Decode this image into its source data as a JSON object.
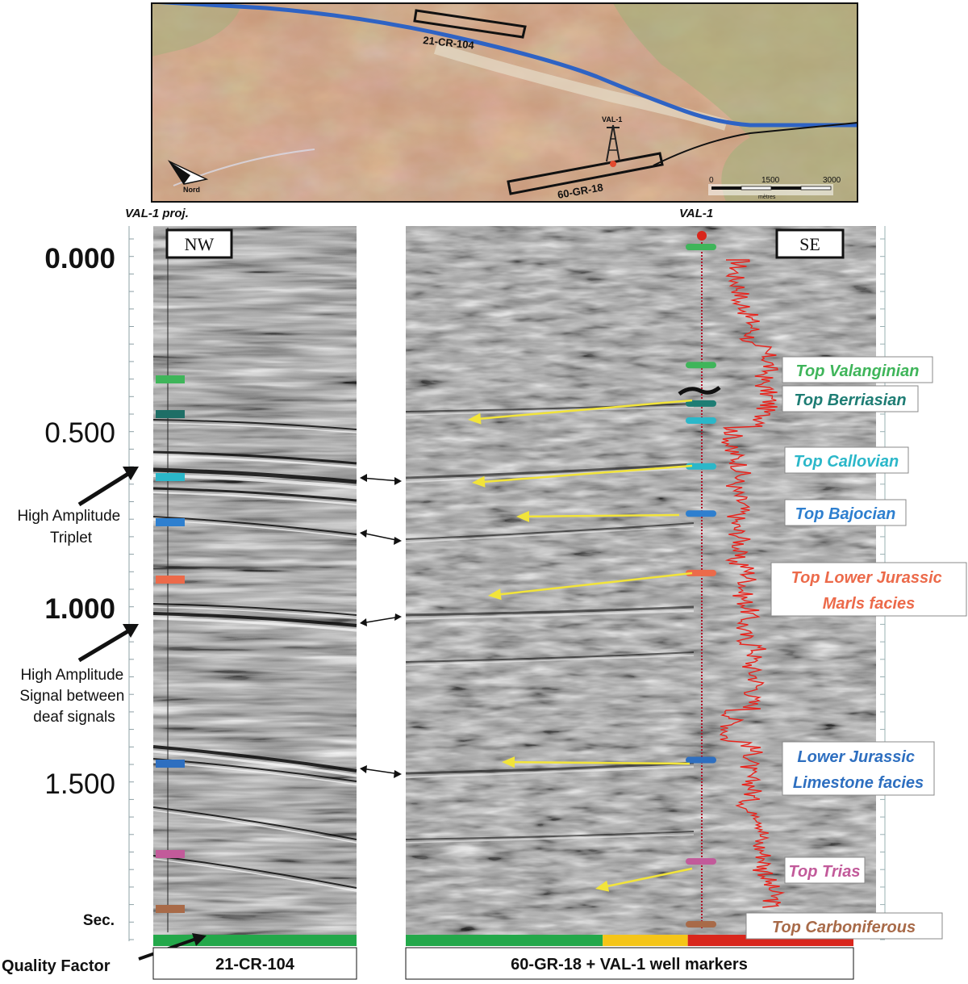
{
  "map": {
    "line_a_label": "21-CR-104",
    "line_b_label": "60-GR-18",
    "well_label": "VAL-1",
    "north_label": "Nord",
    "scale_ticks": [
      "0",
      "1500",
      "3000"
    ],
    "scale_unit": "mètres",
    "colors": {
      "river": "#2e63c4",
      "base": "#c89878",
      "green": "#9fb07a"
    }
  },
  "left_panel": {
    "header": "VAL-1 proj.",
    "direction": "NW",
    "caption": "21-CR-104",
    "marker_colors": [
      "#3fb55a",
      "#1e6e66",
      "#2bb7c9",
      "#2e7fcf",
      "#ec6a4a",
      "#2e6fc0",
      "#c25a9a",
      "#a86a48"
    ]
  },
  "right_panel": {
    "header": "VAL-1",
    "direction": "SE",
    "caption": "60-GR-18 + VAL-1 well markers",
    "gamma_color": "#e8231c"
  },
  "time_axis": {
    "ticks": [
      "0.000",
      "0.500",
      "1.000",
      "1.500"
    ],
    "unit": "Sec."
  },
  "annotations": {
    "triplet": "High Amplitude Triplet",
    "signal": "High Amplitude Signal between deaf signals",
    "quality": "Quality Factor"
  },
  "quality_factor": {
    "left": [
      {
        "color": "#23a84a",
        "fraction": 1.0
      }
    ],
    "right": [
      {
        "color": "#23a84a",
        "fraction": 0.44
      },
      {
        "color": "#f5c518",
        "fraction": 0.19
      },
      {
        "color": "#d9261c",
        "fraction": 0.37
      }
    ]
  },
  "markers": [
    {
      "label": "Top Valanginian",
      "color": "#3fb55a",
      "time": 0.31
    },
    {
      "label": "Top Berriasian",
      "color": "#1e7d74",
      "time": 0.42
    },
    {
      "label": "Top Callovian",
      "color": "#2bb7c9",
      "time": 0.6
    },
    {
      "label": "Top Bajocian",
      "color": "#2e7fcf",
      "time": 0.735
    },
    {
      "label": "Top Lower Jurassic Marls facies",
      "color": "#ec6a4a",
      "time": 0.905
    },
    {
      "label": "Lower Jurassic Limestone facies",
      "color": "#2e6fc0",
      "time": 1.44
    },
    {
      "label": "Top Trias",
      "color": "#c25a9a",
      "time": 1.73
    },
    {
      "label": "Top Carboniferous",
      "color": "#a86a48",
      "time": 1.91
    }
  ]
}
